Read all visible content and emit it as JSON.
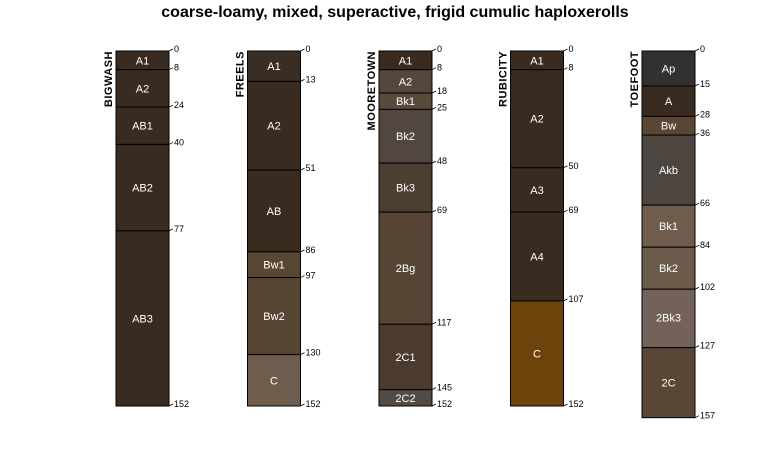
{
  "chart_data": {
    "type": "soil-profile-sketch",
    "title": "coarse-loamy, mixed, superactive, frigid cumulic haploxerolls",
    "depth_units": "cm",
    "profiles": [
      {
        "name": "BIGWASH",
        "horizons": [
          {
            "label": "A1",
            "top": 0,
            "bottom": 8,
            "color": "#3a2b20"
          },
          {
            "label": "A2",
            "top": 8,
            "bottom": 24,
            "color": "#3a2b20"
          },
          {
            "label": "AB1",
            "top": 24,
            "bottom": 40,
            "color": "#3a2b20"
          },
          {
            "label": "AB2",
            "top": 40,
            "bottom": 77,
            "color": "#3a2b20"
          },
          {
            "label": "AB3",
            "top": 77,
            "bottom": 152,
            "color": "#3a2b20"
          }
        ]
      },
      {
        "name": "FREELS",
        "horizons": [
          {
            "label": "A1",
            "top": 0,
            "bottom": 13,
            "color": "#3a2d23"
          },
          {
            "label": "A2",
            "top": 13,
            "bottom": 51,
            "color": "#3a2b20"
          },
          {
            "label": "AB",
            "top": 51,
            "bottom": 86,
            "color": "#3a2b20"
          },
          {
            "label": "Bw1",
            "top": 86,
            "bottom": 97,
            "color": "#5a4634"
          },
          {
            "label": "Bw2",
            "top": 97,
            "bottom": 130,
            "color": "#574534"
          },
          {
            "label": "C",
            "top": 130,
            "bottom": 152,
            "color": "#6e5d4c"
          }
        ]
      },
      {
        "name": "MOORETOWN",
        "horizons": [
          {
            "label": "A1",
            "top": 0,
            "bottom": 8,
            "color": "#3a2b20"
          },
          {
            "label": "A2",
            "top": 8,
            "bottom": 18,
            "color": "#53473e"
          },
          {
            "label": "Bk1",
            "top": 18,
            "bottom": 25,
            "color": "#5a4a3c"
          },
          {
            "label": "Bk2",
            "top": 25,
            "bottom": 48,
            "color": "#514740"
          },
          {
            "label": "Bk3",
            "top": 48,
            "bottom": 69,
            "color": "#4b3f31"
          },
          {
            "label": "2Bg",
            "top": 69,
            "bottom": 117,
            "color": "#564535"
          },
          {
            "label": "2C1",
            "top": 117,
            "bottom": 145,
            "color": "#4a3b2e"
          },
          {
            "label": "2C2",
            "top": 145,
            "bottom": 152,
            "color": "#524a44"
          }
        ]
      },
      {
        "name": "RUBICITY",
        "horizons": [
          {
            "label": "A1",
            "top": 0,
            "bottom": 8,
            "color": "#3a2b20"
          },
          {
            "label": "A2",
            "top": 8,
            "bottom": 50,
            "color": "#3a2b20"
          },
          {
            "label": "A3",
            "top": 50,
            "bottom": 69,
            "color": "#3a2b20"
          },
          {
            "label": "A4",
            "top": 69,
            "bottom": 107,
            "color": "#3a2b20"
          },
          {
            "label": "C",
            "top": 107,
            "bottom": 152,
            "color": "#6b430b"
          }
        ]
      },
      {
        "name": "TOEFOOT",
        "horizons": [
          {
            "label": "Ap",
            "top": 0,
            "bottom": 15,
            "color": "#333030"
          },
          {
            "label": "A",
            "top": 15,
            "bottom": 28,
            "color": "#3a2b20"
          },
          {
            "label": "Bw",
            "top": 28,
            "bottom": 36,
            "color": "#5a4634"
          },
          {
            "label": "Akb",
            "top": 36,
            "bottom": 66,
            "color": "#4d4540"
          },
          {
            "label": "Bk1",
            "top": 66,
            "bottom": 84,
            "color": "#6e5d4c"
          },
          {
            "label": "Bk2",
            "top": 84,
            "bottom": 102,
            "color": "#6b5b4a"
          },
          {
            "label": "2Bk3",
            "top": 102,
            "bottom": 127,
            "color": "#72625a"
          },
          {
            "label": "2C",
            "top": 127,
            "bottom": 157,
            "color": "#574734"
          }
        ]
      }
    ]
  }
}
